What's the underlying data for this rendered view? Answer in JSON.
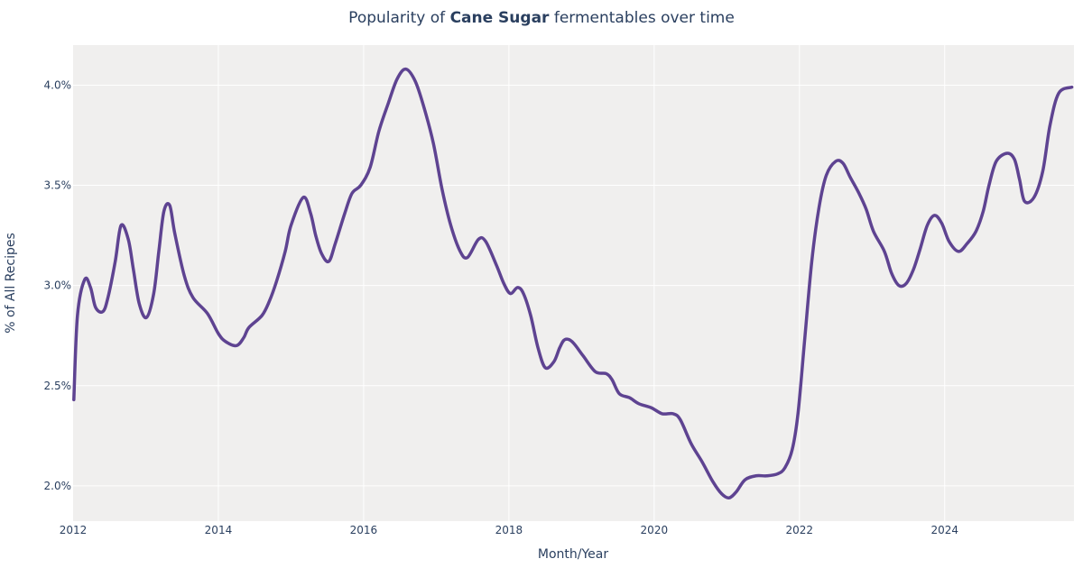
{
  "chart_data": {
    "type": "line",
    "title_prefix": "Popularity of ",
    "title_bold": "Cane Sugar",
    "title_suffix": " fermentables over time",
    "xlabel": "Month/Year",
    "ylabel": "% of All Recipes",
    "xlim": [
      2012.0,
      2025.78
    ],
    "ylim": [
      1.824,
      4.2
    ],
    "x_ticks": [
      2012,
      2014,
      2016,
      2018,
      2020,
      2022,
      2024
    ],
    "x_tick_labels": [
      "2012",
      "2014",
      "2016",
      "2018",
      "2020",
      "2022",
      "2024"
    ],
    "y_ticks": [
      2.0,
      2.5,
      3.0,
      3.5,
      4.0
    ],
    "y_tick_labels": [
      "2.0%",
      "2.5%",
      "3.0%",
      "3.5%",
      "4.0%"
    ],
    "grid": true,
    "colors": {
      "line": "#5e4391",
      "plot_bg": "#f0efee",
      "grid": "#ffffff",
      "text": "#2a3f5f"
    },
    "series": [
      {
        "x": [
          2012.01,
          2012.06,
          2012.16,
          2012.24,
          2012.31,
          2012.41,
          2012.48,
          2012.58,
          2012.66,
          2012.76,
          2012.83,
          2012.91,
          2013.01,
          2013.11,
          2013.18,
          2013.25,
          2013.33,
          2013.4,
          2013.53,
          2013.65,
          2013.85,
          2014.0,
          2014.1,
          2014.25,
          2014.35,
          2014.42,
          2014.6,
          2014.7,
          2014.8,
          2014.92,
          2015.0,
          2015.17,
          2015.27,
          2015.34,
          2015.42,
          2015.52,
          2015.61,
          2015.74,
          2015.84,
          2015.96,
          2016.09,
          2016.21,
          2016.34,
          2016.46,
          2016.58,
          2016.71,
          2016.83,
          2016.96,
          2017.08,
          2017.2,
          2017.33,
          2017.43,
          2017.58,
          2017.68,
          2017.83,
          2017.93,
          2018.02,
          2018.12,
          2018.2,
          2018.3,
          2018.4,
          2018.5,
          2018.62,
          2018.7,
          2018.77,
          2018.87,
          2019.02,
          2019.19,
          2019.34,
          2019.42,
          2019.52,
          2019.66,
          2019.79,
          2019.96,
          2020.11,
          2020.26,
          2020.36,
          2020.51,
          2020.66,
          2020.81,
          2020.93,
          2021.03,
          2021.13,
          2021.25,
          2021.4,
          2021.55,
          2021.7,
          2021.8,
          2021.9,
          2021.98,
          2022.07,
          2022.17,
          2022.27,
          2022.37,
          2022.5,
          2022.6,
          2022.7,
          2022.82,
          2022.92,
          2023.02,
          2023.17,
          2023.27,
          2023.37,
          2023.47,
          2023.57,
          2023.66,
          2023.76,
          2023.86,
          2023.96,
          2024.06,
          2024.19,
          2024.31,
          2024.43,
          2024.53,
          2024.61,
          2024.71,
          2024.86,
          2024.96,
          2025.03,
          2025.1,
          2025.23,
          2025.35,
          2025.45,
          2025.57,
          2025.75
        ],
        "y": [
          2.43,
          2.85,
          3.03,
          2.99,
          2.89,
          2.87,
          2.94,
          3.12,
          3.3,
          3.23,
          3.08,
          2.91,
          2.84,
          2.96,
          3.17,
          3.37,
          3.4,
          3.26,
          3.05,
          2.94,
          2.86,
          2.76,
          2.72,
          2.7,
          2.74,
          2.79,
          2.85,
          2.92,
          3.02,
          3.17,
          3.3,
          3.44,
          3.36,
          3.25,
          3.16,
          3.12,
          3.21,
          3.36,
          3.46,
          3.5,
          3.59,
          3.77,
          3.91,
          4.03,
          4.08,
          4.02,
          3.89,
          3.71,
          3.48,
          3.3,
          3.17,
          3.14,
          3.23,
          3.22,
          3.1,
          3.01,
          2.96,
          2.99,
          2.96,
          2.85,
          2.69,
          2.59,
          2.62,
          2.69,
          2.73,
          2.72,
          2.65,
          2.57,
          2.56,
          2.53,
          2.46,
          2.44,
          2.41,
          2.39,
          2.36,
          2.36,
          2.33,
          2.21,
          2.12,
          2.02,
          1.96,
          1.94,
          1.97,
          2.03,
          2.05,
          2.05,
          2.06,
          2.09,
          2.18,
          2.36,
          2.72,
          3.12,
          3.39,
          3.55,
          3.62,
          3.61,
          3.54,
          3.46,
          3.38,
          3.27,
          3.17,
          3.06,
          3.0,
          3.01,
          3.08,
          3.18,
          3.3,
          3.35,
          3.31,
          3.22,
          3.17,
          3.21,
          3.27,
          3.37,
          3.5,
          3.62,
          3.66,
          3.63,
          3.53,
          3.42,
          3.44,
          3.57,
          3.8,
          3.96,
          3.99
        ]
      }
    ]
  }
}
